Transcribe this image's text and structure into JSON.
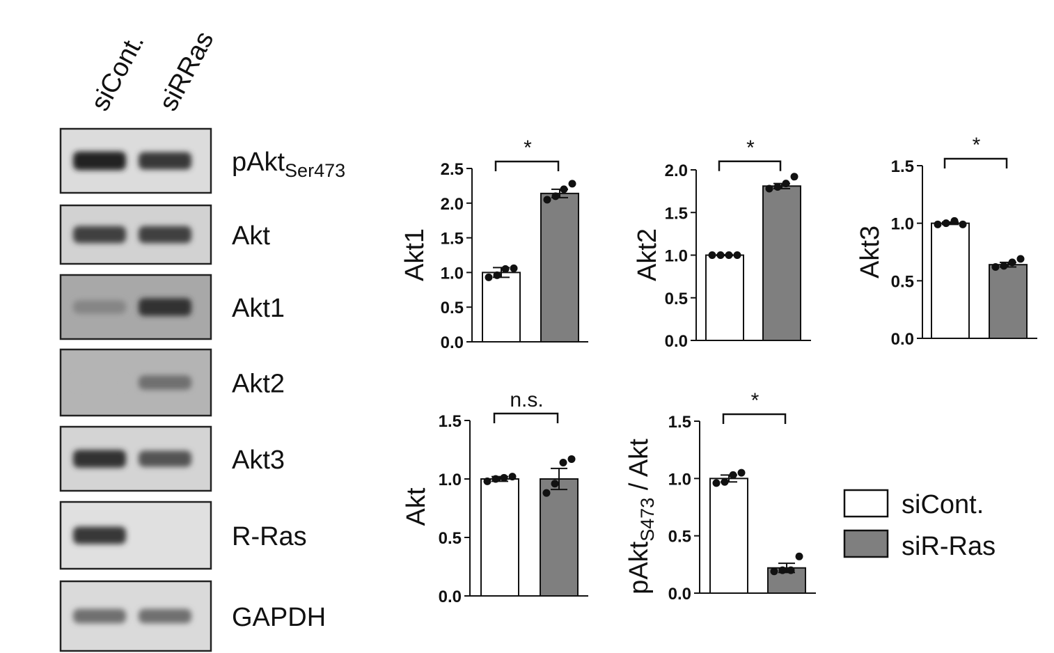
{
  "figure": {
    "lanes": [
      "siCont.",
      "siRRas"
    ],
    "blots": [
      {
        "label": "pAkt",
        "subscript": "Ser473",
        "intensity": [
          0.92,
          0.82
        ],
        "background": "#dcdcdc"
      },
      {
        "label": "Akt",
        "subscript": "",
        "intensity": [
          0.78,
          0.78
        ],
        "background": "#d2d2d2"
      },
      {
        "label": "Akt1",
        "subscript": "",
        "intensity": [
          0.45,
          0.85
        ],
        "background": "#a8a8a8"
      },
      {
        "label": "Akt2",
        "subscript": "",
        "intensity": [
          0.22,
          0.55
        ],
        "background": "#b4b4b4"
      },
      {
        "label": "Akt3",
        "subscript": "",
        "intensity": [
          0.85,
          0.7
        ],
        "background": "#d4d4d4"
      },
      {
        "label": "R-Ras",
        "subscript": "",
        "intensity": [
          0.82,
          0.0
        ],
        "background": "#e0e0e0"
      },
      {
        "label": "GAPDH",
        "subscript": "",
        "intensity": [
          0.55,
          0.55
        ],
        "background": "#dadada"
      }
    ]
  },
  "legend": {
    "items": [
      {
        "label": "siCont.",
        "color": "#ffffff"
      },
      {
        "label": "siR-Ras",
        "color": "#7f7f7f"
      }
    ]
  },
  "chart_data": [
    {
      "type": "bar",
      "id": "akt1",
      "ylabel": "Akt1",
      "ylabel_sub": "",
      "ylabel_suffix": "",
      "categories": [
        "siCont.",
        "siR-Ras"
      ],
      "values": [
        1.0,
        2.14
      ],
      "sem": [
        0.07,
        0.06
      ],
      "points": [
        [
          0.93,
          0.96,
          1.05,
          1.06
        ],
        [
          2.05,
          2.1,
          2.2,
          2.28
        ]
      ],
      "ylim": [
        0,
        2.5
      ],
      "yticks": [
        "0.0",
        "0.5",
        "1.0",
        "1.5",
        "2.0",
        "2.5"
      ],
      "significance": "*",
      "colors": [
        "#ffffff",
        "#7f7f7f"
      ]
    },
    {
      "type": "bar",
      "id": "akt2",
      "ylabel": "Akt2",
      "ylabel_sub": "",
      "ylabel_suffix": "",
      "categories": [
        "siCont.",
        "siR-Ras"
      ],
      "values": [
        1.0,
        1.81
      ],
      "sem": [
        0.005,
        0.03
      ],
      "points": [
        [
          1.0,
          1.0,
          1.0,
          1.0
        ],
        [
          1.78,
          1.8,
          1.84,
          1.92
        ]
      ],
      "ylim": [
        0,
        2.0
      ],
      "yticks": [
        "0.0",
        "0.5",
        "1.0",
        "1.5",
        "2.0"
      ],
      "significance": "*",
      "colors": [
        "#ffffff",
        "#7f7f7f"
      ]
    },
    {
      "type": "bar",
      "id": "akt3",
      "ylabel": "Akt3",
      "ylabel_sub": "",
      "ylabel_suffix": "",
      "categories": [
        "siCont.",
        "siR-Ras"
      ],
      "values": [
        1.0,
        0.64
      ],
      "sem": [
        0.01,
        0.02
      ],
      "points": [
        [
          0.99,
          1.0,
          1.02,
          0.99
        ],
        [
          0.62,
          0.63,
          0.66,
          0.69
        ]
      ],
      "ylim": [
        0,
        1.5
      ],
      "yticks": [
        "0.0",
        "0.5",
        "1.0",
        "1.5"
      ],
      "significance": "*",
      "colors": [
        "#ffffff",
        "#7f7f7f"
      ]
    },
    {
      "type": "bar",
      "id": "akt",
      "ylabel": "Akt",
      "ylabel_sub": "",
      "ylabel_suffix": "",
      "categories": [
        "siCont.",
        "siR-Ras"
      ],
      "values": [
        1.0,
        1.0
      ],
      "sem": [
        0.02,
        0.09
      ],
      "points": [
        [
          0.98,
          1.0,
          1.01,
          1.02
        ],
        [
          0.88,
          0.96,
          1.14,
          1.17
        ]
      ],
      "ylim": [
        0,
        1.5
      ],
      "yticks": [
        "0.0",
        "0.5",
        "1.0",
        "1.5"
      ],
      "significance": "n.s.",
      "colors": [
        "#ffffff",
        "#7f7f7f"
      ]
    },
    {
      "type": "bar",
      "id": "pakt_ratio",
      "ylabel": "pAkt",
      "ylabel_sub": "S473",
      "ylabel_suffix": " / Akt",
      "categories": [
        "siCont.",
        "siR-Ras"
      ],
      "values": [
        1.0,
        0.22
      ],
      "sem": [
        0.03,
        0.04
      ],
      "points": [
        [
          0.96,
          0.97,
          1.03,
          1.05
        ],
        [
          0.19,
          0.2,
          0.2,
          0.32
        ]
      ],
      "ylim": [
        0,
        1.5
      ],
      "yticks": [
        "0.0",
        "0.5",
        "1.0",
        "1.5"
      ],
      "significance": "*",
      "colors": [
        "#ffffff",
        "#7f7f7f"
      ]
    }
  ]
}
